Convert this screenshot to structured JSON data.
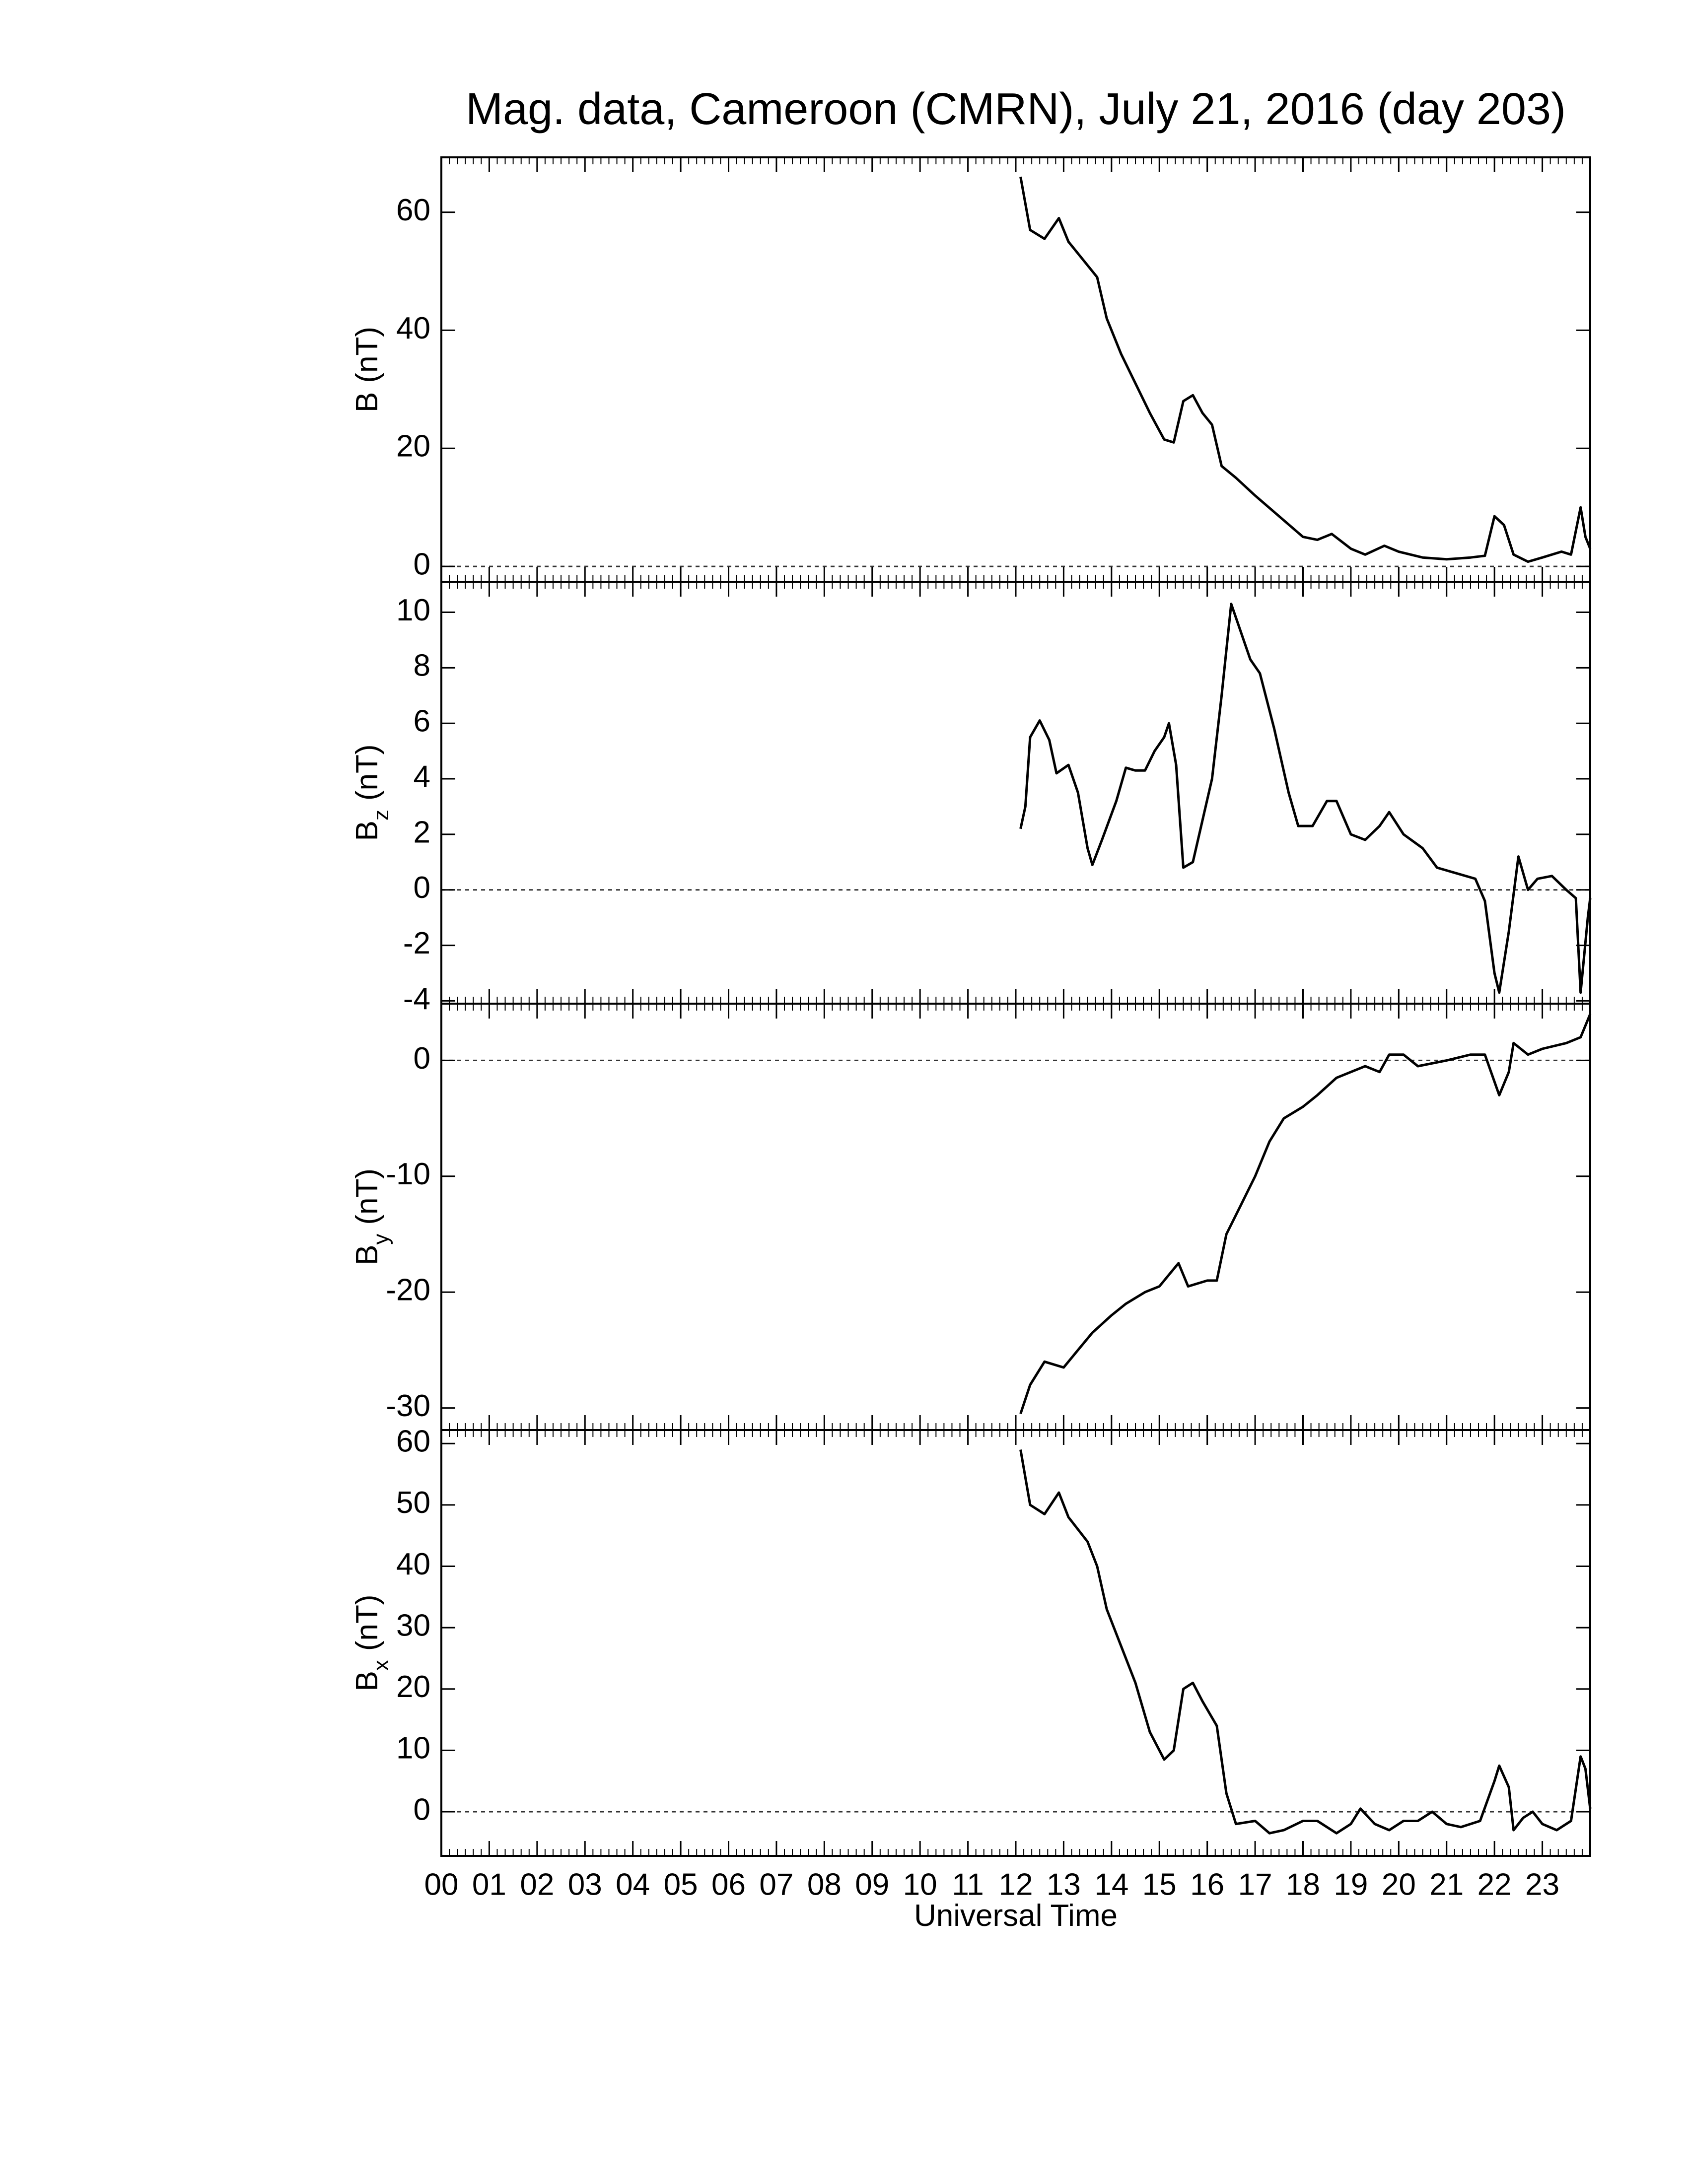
{
  "chart_data": [
    {
      "type": "line",
      "title": "Mag. data, Cameroon (CMRN), July 21, 2016 (day 203)",
      "ylabel": "B",
      "ylabel_unit": "(nT)",
      "color": "#000000",
      "zero_line": true,
      "ylim": [
        -2.6,
        69.3
      ],
      "yticks": [
        0,
        20,
        40,
        60
      ],
      "x": [
        12.1,
        12.3,
        12.6,
        12.9,
        13.1,
        13.4,
        13.7,
        13.9,
        14.2,
        14.5,
        14.8,
        15.1,
        15.3,
        15.5,
        15.7,
        15.9,
        16.1,
        16.3,
        16.6,
        17,
        17.5,
        18,
        18.3,
        18.6,
        19,
        19.3,
        19.7,
        20,
        20.5,
        21,
        21.5,
        21.8,
        22,
        22.2,
        22.4,
        22.7,
        23,
        23.4,
        23.6,
        23.8,
        23.9,
        24
      ],
      "values": [
        66,
        57,
        55.5,
        59,
        55,
        52,
        49,
        42,
        36,
        31,
        26,
        21.5,
        21,
        28,
        29,
        26,
        24,
        17,
        15,
        12,
        8.5,
        5,
        4.5,
        5.5,
        3,
        2,
        3.5,
        2.5,
        1.5,
        1.2,
        1.5,
        1.8,
        8.5,
        7,
        2,
        0.8,
        1.5,
        2.5,
        2,
        10,
        5,
        3
      ]
    },
    {
      "type": "line",
      "ylabel": "B",
      "ylabel_sub": "z",
      "ylabel_unit": "(nT)",
      "color": "#000000",
      "zero_line": true,
      "ylim": [
        -4.1,
        11.1
      ],
      "yticks": [
        -4,
        -2,
        0,
        2,
        4,
        6,
        8,
        10
      ],
      "x": [
        12.1,
        12.2,
        12.3,
        12.5,
        12.7,
        12.85,
        13.1,
        13.3,
        13.5,
        13.6,
        13.8,
        14.1,
        14.3,
        14.5,
        14.7,
        14.9,
        15.1,
        15.2,
        15.35,
        15.5,
        15.7,
        15.9,
        16.1,
        16.3,
        16.5,
        16.7,
        16.9,
        17.1,
        17.4,
        17.7,
        17.9,
        18.2,
        18.5,
        18.7,
        19,
        19.3,
        19.6,
        19.8,
        20.1,
        20.5,
        20.8,
        21.2,
        21.6,
        21.8,
        22,
        22.1,
        22.3,
        22.5,
        22.7,
        22.9,
        23.2,
        23.5,
        23.7,
        23.8,
        23.95,
        24
      ],
      "values": [
        2.2,
        3,
        5.5,
        6.1,
        5.4,
        4.2,
        4.5,
        3.5,
        1.5,
        0.9,
        1.8,
        3.2,
        4.4,
        4.3,
        4.3,
        5,
        5.5,
        6,
        4.5,
        0.8,
        1,
        2.5,
        4,
        7,
        10.3,
        9.3,
        8.3,
        7.8,
        5.8,
        3.5,
        2.3,
        2.3,
        3.2,
        3.2,
        2,
        1.8,
        2.3,
        2.8,
        2,
        1.5,
        0.8,
        0.6,
        0.4,
        -0.4,
        -3,
        -3.7,
        -1.5,
        1.2,
        0,
        0.4,
        0.5,
        0,
        -0.3,
        -3.7,
        -1,
        -0.3
      ]
    },
    {
      "type": "line",
      "ylabel": "B",
      "ylabel_sub": "y",
      "ylabel_unit": "(nT)",
      "color": "#000000",
      "zero_line": true,
      "ylim": [
        -31.9,
        4.9
      ],
      "yticks": [
        -30,
        -20,
        -10,
        0
      ],
      "x": [
        12.1,
        12.3,
        12.6,
        13,
        13.3,
        13.6,
        14,
        14.3,
        14.7,
        15,
        15.2,
        15.4,
        15.6,
        16,
        16.2,
        16.4,
        16.7,
        17,
        17.3,
        17.6,
        18,
        18.3,
        18.7,
        19,
        19.3,
        19.6,
        19.8,
        20.1,
        20.4,
        21,
        21.5,
        21.8,
        22.1,
        22.3,
        22.4,
        22.7,
        23,
        23.5,
        23.8,
        24
      ],
      "values": [
        -30.5,
        -28,
        -26,
        -26.5,
        -25,
        -23.5,
        -22,
        -21,
        -20,
        -19.5,
        -18.5,
        -17.5,
        -19.5,
        -19,
        -19,
        -15,
        -12.5,
        -10,
        -7,
        -5,
        -4,
        -3,
        -1.5,
        -1,
        -0.5,
        -1,
        0.5,
        0.5,
        -0.5,
        0,
        0.5,
        0.5,
        -3,
        -1,
        1.5,
        0.5,
        1,
        1.5,
        2,
        4
      ]
    },
    {
      "type": "line",
      "ylabel": "B",
      "ylabel_sub": "x",
      "ylabel_unit": "(nT)",
      "color": "#000000",
      "zero_line": true,
      "ylim": [
        -7.2,
        62.2
      ],
      "yticks": [
        0,
        10,
        20,
        30,
        40,
        50,
        60
      ],
      "xlim": [
        0,
        24
      ],
      "xlabel": "Universal Time",
      "xticks": [
        {
          "value": 0,
          "label": "00"
        },
        {
          "value": 1,
          "label": "01"
        },
        {
          "value": 2,
          "label": "02"
        },
        {
          "value": 3,
          "label": "03"
        },
        {
          "value": 4,
          "label": "04"
        },
        {
          "value": 5,
          "label": "05"
        },
        {
          "value": 6,
          "label": "06"
        },
        {
          "value": 7,
          "label": "07"
        },
        {
          "value": 8,
          "label": "08"
        },
        {
          "value": 9,
          "label": "09"
        },
        {
          "value": 10,
          "label": "10"
        },
        {
          "value": 11,
          "label": "11"
        },
        {
          "value": 12,
          "label": "12"
        },
        {
          "value": 13,
          "label": "13"
        },
        {
          "value": 14,
          "label": "14"
        },
        {
          "value": 15,
          "label": "15"
        },
        {
          "value": 16,
          "label": "16"
        },
        {
          "value": 17,
          "label": "17"
        },
        {
          "value": 18,
          "label": "18"
        },
        {
          "value": 19,
          "label": "19"
        },
        {
          "value": 20,
          "label": "20"
        },
        {
          "value": 21,
          "label": "21"
        },
        {
          "value": 22,
          "label": "22"
        },
        {
          "value": 23,
          "label": "23"
        }
      ],
      "x": [
        12.1,
        12.3,
        12.6,
        12.9,
        13.1,
        13.5,
        13.7,
        13.9,
        14.2,
        14.5,
        14.8,
        15.1,
        15.3,
        15.5,
        15.7,
        15.9,
        16.2,
        16.4,
        16.6,
        17,
        17.3,
        17.6,
        18,
        18.3,
        18.7,
        19,
        19.2,
        19.5,
        19.8,
        20.1,
        20.4,
        20.7,
        21,
        21.3,
        21.7,
        22,
        22.1,
        22.3,
        22.4,
        22.6,
        22.8,
        23,
        23.3,
        23.6,
        23.8,
        23.9,
        24
      ],
      "values": [
        59,
        50,
        48.5,
        52,
        48,
        44,
        40,
        33,
        27,
        21,
        13,
        8.5,
        10,
        20,
        21,
        18,
        14,
        3,
        -2,
        -1.5,
        -3.5,
        -3,
        -1.5,
        -1.5,
        -3.5,
        -2,
        0.5,
        -2,
        -3,
        -1.5,
        -1.5,
        0,
        -2,
        -2.5,
        -1.5,
        5,
        7.5,
        4,
        -3,
        -1,
        0,
        -2,
        -3,
        -1.5,
        9,
        7,
        0.5
      ]
    }
  ]
}
